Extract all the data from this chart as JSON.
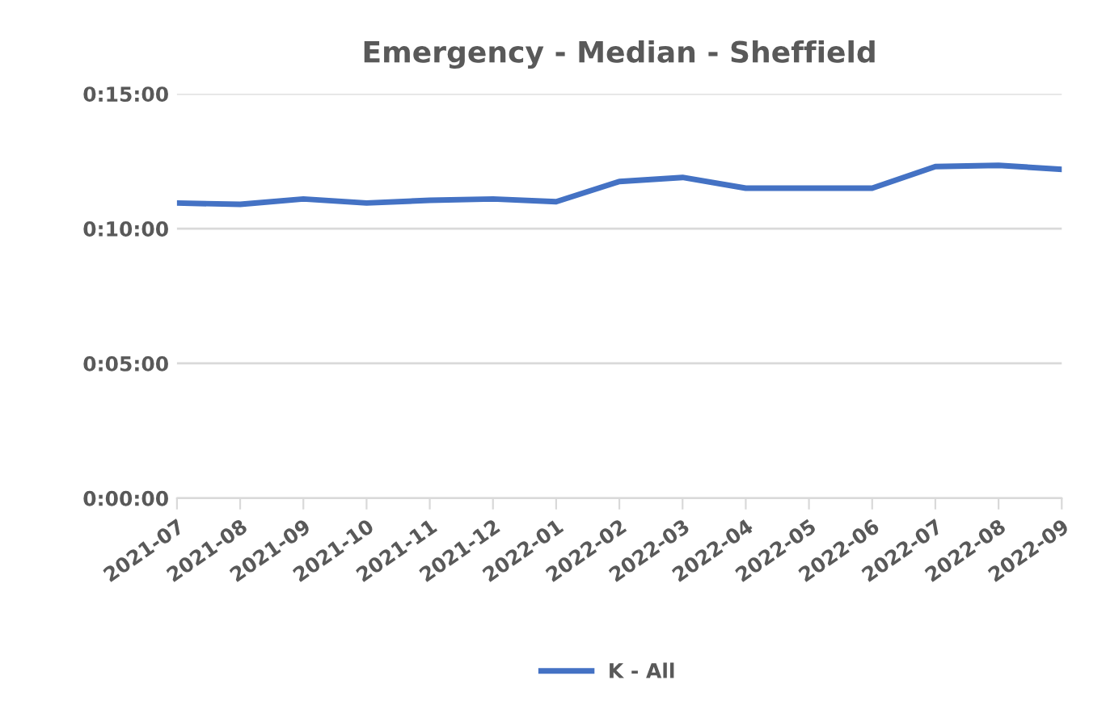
{
  "chart_data": {
    "type": "line",
    "title": "Emergency - Median - Sheffield",
    "categories": [
      "2021-07",
      "2021-08",
      "2021-09",
      "2021-10",
      "2021-11",
      "2021-12",
      "2022-01",
      "2022-02",
      "2022-03",
      "2022-04",
      "2022-05",
      "2022-06",
      "2022-07",
      "2022-08",
      "2022-09"
    ],
    "series": [
      {
        "name": "K - All",
        "color": "#4472c4",
        "values": [
          10.95,
          10.9,
          11.1,
          10.95,
          11.05,
          11.1,
          11.0,
          11.75,
          11.9,
          11.5,
          11.5,
          11.5,
          12.3,
          12.35,
          12.2
        ]
      }
    ],
    "ylim": [
      0,
      15
    ],
    "yticks": [
      {
        "value": 0,
        "label": "0:00:00"
      },
      {
        "value": 5,
        "label": "0:05:00"
      },
      {
        "value": 10,
        "label": "0:10:00"
      },
      {
        "value": 15,
        "label": "0:15:00"
      }
    ],
    "grid": "y",
    "legend": "bottom",
    "marker": "none",
    "line_style": "solid"
  }
}
